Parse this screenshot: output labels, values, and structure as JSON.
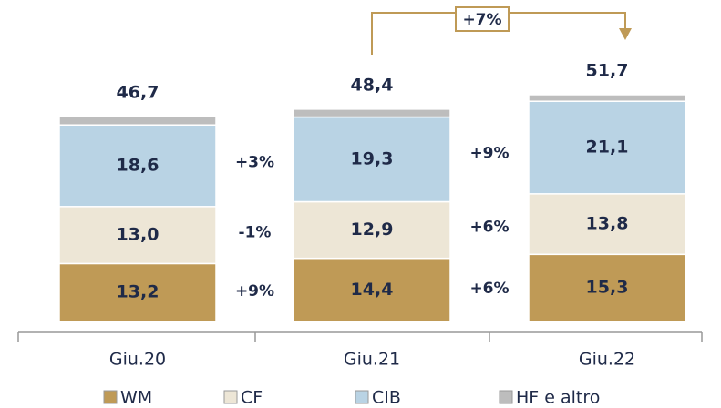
{
  "chart_data": {
    "type": "stacked_bar",
    "categories": [
      "Giu.20",
      "Giu.21",
      "Giu.22"
    ],
    "series": [
      {
        "name": "WM",
        "color": "#bf9a56",
        "values": [
          13.2,
          14.4,
          15.3
        ],
        "value_labels": [
          "13,2",
          "14,4",
          "15,3"
        ]
      },
      {
        "name": "CF",
        "color": "#ede6d6",
        "values": [
          13.0,
          12.9,
          13.8
        ],
        "value_labels": [
          "13,0",
          "12,9",
          "13,8"
        ]
      },
      {
        "name": "CIB",
        "color": "#b9d3e4",
        "values": [
          18.6,
          19.3,
          21.1
        ],
        "value_labels": [
          "18,6",
          "19,3",
          "21,1"
        ]
      },
      {
        "name": "HF e altro",
        "color": "#bdbdbd",
        "values": [
          1.9,
          1.8,
          1.5
        ]
      }
    ],
    "totals": [
      46.7,
      48.4,
      51.7
    ],
    "total_labels": [
      "46,7",
      "48,4",
      "51,7"
    ],
    "growth": [
      [
        "+9%",
        "-1%",
        "+3%"
      ],
      [
        "+6%",
        "+6%",
        "+9%"
      ]
    ],
    "total_growth": "+7%",
    "ylim": [
      0,
      60
    ]
  }
}
